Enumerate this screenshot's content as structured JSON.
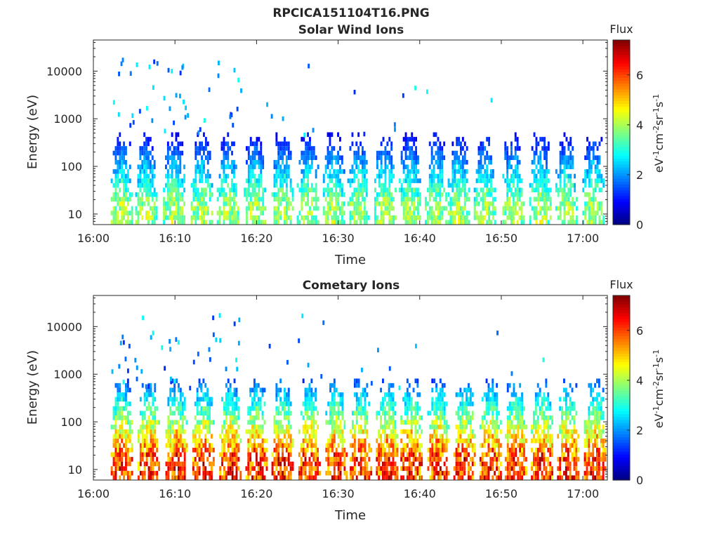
{
  "figure_title": "RPCICA151104T16.PNG",
  "chart_data": [
    {
      "type": "heatmap",
      "title": "Solar Wind Ions",
      "xlabel": "Time",
      "ylabel": "Energy (eV)",
      "x_ticks": [
        "16:00",
        "16:10",
        "16:20",
        "16:30",
        "16:40",
        "16:50",
        "17:00"
      ],
      "x_range_minutes": [
        0,
        63
      ],
      "y_ticks": [
        10,
        100,
        1000,
        10000
      ],
      "y_scale": "log",
      "ylim": [
        6,
        45000
      ],
      "colorbar": {
        "title": "Flux",
        "label": "eV-1cm-2sr-1s-1",
        "ticks": [
          0,
          2,
          4,
          6
        ],
        "range": [
          0,
          7.4
        ],
        "colormap": "jet"
      },
      "bursts_minute": [
        3.5,
        6.5,
        9.9,
        13.3,
        16.5,
        19.8,
        23.2,
        26.3,
        29.5,
        32.5,
        35.8,
        38.8,
        42.0,
        44.8,
        48.0,
        51.5,
        54.8,
        58.0,
        61.3
      ],
      "peak_flux": 4.2,
      "top_energy_ev": 300,
      "base_energy_ev": 6
    },
    {
      "type": "heatmap",
      "title": "Cometary Ions",
      "xlabel": "Time",
      "ylabel": "Energy (eV)",
      "x_ticks": [
        "16:00",
        "16:10",
        "16:20",
        "16:30",
        "16:40",
        "16:50",
        "17:00"
      ],
      "x_range_minutes": [
        0,
        63
      ],
      "y_ticks": [
        10,
        100,
        1000,
        10000
      ],
      "y_scale": "log",
      "ylim": [
        6,
        45000
      ],
      "colorbar": {
        "title": "Flux",
        "label": "eV-1cm-2sr-1s-1",
        "ticks": [
          0,
          2,
          4,
          6
        ],
        "range": [
          0,
          7.4
        ],
        "colormap": "jet"
      },
      "bursts_minute": [
        3.5,
        6.8,
        10.2,
        13.5,
        16.8,
        20.0,
        23.2,
        26.5,
        29.8,
        32.8,
        36.0,
        39.0,
        42.3,
        45.5,
        48.7,
        51.8,
        55.0,
        58.2,
        61.5
      ],
      "peak_flux": 6.5,
      "top_energy_ev": 500,
      "base_energy_ev": 6
    }
  ]
}
